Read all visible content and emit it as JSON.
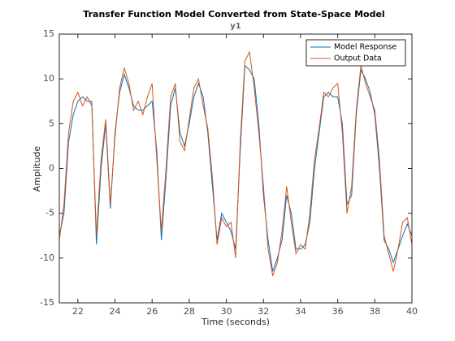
{
  "chart_data": {
    "type": "line",
    "title": "Transfer Function Model Converted from State-Space Model",
    "subtitle": "y1",
    "x_label": "Time (seconds)",
    "y_label": "Amplitude",
    "x": [
      21,
      21.25,
      21.5,
      21.75,
      22,
      22.25,
      22.5,
      22.75,
      23,
      23.25,
      23.5,
      23.75,
      24,
      24.25,
      24.5,
      24.75,
      25,
      25.25,
      25.5,
      25.75,
      26,
      26.25,
      26.5,
      26.75,
      27,
      27.25,
      27.5,
      27.75,
      28,
      28.25,
      28.5,
      28.75,
      29,
      29.25,
      29.5,
      29.75,
      30,
      30.25,
      30.5,
      30.75,
      31,
      31.25,
      31.5,
      31.75,
      32,
      32.25,
      32.5,
      32.75,
      33,
      33.25,
      33.5,
      33.75,
      34,
      34.25,
      34.5,
      34.75,
      35,
      35.25,
      35.5,
      35.75,
      36,
      36.25,
      36.5,
      36.75,
      37,
      37.25,
      37.5,
      37.75,
      38,
      38.25,
      38.5,
      38.75,
      39,
      39.25,
      39.5,
      39.75,
      40
    ],
    "series": [
      {
        "name": "Model Response",
        "color": "#0072bd",
        "values": [
          -7.5,
          -5,
          3,
          6,
          7.5,
          8,
          7.5,
          7.5,
          -8.5,
          0,
          5,
          -4.5,
          4,
          8.5,
          10.5,
          9,
          7,
          6.5,
          6.5,
          7,
          7.5,
          2,
          -8,
          -1,
          7,
          9,
          4,
          2.5,
          5,
          8,
          9.5,
          8,
          4,
          -2,
          -8,
          -5,
          -6,
          -7,
          -9,
          2,
          11.5,
          11,
          10,
          5,
          -3,
          -8,
          -11.5,
          -10,
          -8,
          -3,
          -5,
          -9,
          -9,
          -8.5,
          -6,
          0,
          4,
          8,
          8.5,
          8,
          8,
          5,
          -4,
          -3,
          6,
          11,
          10,
          8.5,
          6,
          0,
          -8,
          -9,
          -10.5,
          -9,
          -7.5,
          -6.2,
          -7.5
        ]
      },
      {
        "name": "Output Data",
        "color": "#d95319",
        "values": [
          -8,
          -4,
          4,
          7.5,
          8.5,
          7,
          8,
          7,
          -7.5,
          1,
          5.5,
          -4,
          3.5,
          9,
          11.2,
          9.5,
          6.5,
          7.5,
          6,
          8,
          9.5,
          1,
          -7,
          0,
          8,
          9.5,
          3,
          2,
          5.5,
          9,
          10,
          7,
          4.5,
          -1,
          -8.5,
          -5.5,
          -6.5,
          -6,
          -10,
          3,
          12,
          13,
          9,
          4,
          -2,
          -9,
          -12,
          -10.5,
          -7,
          -2,
          -6,
          -9.5,
          -8.5,
          -9,
          -5,
          1,
          4.5,
          8.5,
          8,
          9,
          9.5,
          4,
          -5,
          -2,
          6.5,
          11.5,
          9.5,
          8,
          6.5,
          1,
          -7.5,
          -9.5,
          -11.5,
          -9,
          -6,
          -5.5,
          -8.5
        ]
      }
    ],
    "xlim": [
      21,
      40
    ],
    "xticks": [
      22,
      24,
      26,
      28,
      30,
      32,
      34,
      36,
      38,
      40
    ],
    "ylim": [
      -15,
      15
    ],
    "yticks": [
      -15,
      -10,
      -5,
      0,
      5,
      10,
      15
    ],
    "legend": "northeast",
    "grid": false
  }
}
